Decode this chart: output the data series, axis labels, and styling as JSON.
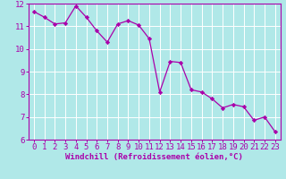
{
  "x": [
    0,
    1,
    2,
    3,
    4,
    5,
    6,
    7,
    8,
    9,
    10,
    11,
    12,
    13,
    14,
    15,
    16,
    17,
    18,
    19,
    20,
    21,
    22,
    23
  ],
  "y": [
    11.65,
    11.4,
    11.1,
    11.15,
    11.9,
    11.4,
    10.8,
    10.3,
    11.1,
    11.25,
    11.05,
    10.45,
    8.1,
    9.45,
    9.4,
    8.2,
    8.1,
    7.8,
    7.4,
    7.55,
    7.45,
    6.85,
    7.0,
    6.35
  ],
  "line_color": "#aa00aa",
  "marker": "D",
  "marker_size": 2.2,
  "bg_color": "#b0e8e8",
  "grid_color": "#ffffff",
  "xlabel": "Windchill (Refroidissement éolien,°C)",
  "xlabel_color": "#aa00aa",
  "tick_color": "#aa00aa",
  "axis_color": "#aa00aa",
  "ylim": [
    6,
    12
  ],
  "xlim": [
    0,
    23
  ],
  "yticks": [
    6,
    7,
    8,
    9,
    10,
    11,
    12
  ],
  "xticks": [
    0,
    1,
    2,
    3,
    4,
    5,
    6,
    7,
    8,
    9,
    10,
    11,
    12,
    13,
    14,
    15,
    16,
    17,
    18,
    19,
    20,
    21,
    22,
    23
  ],
  "tick_fontsize": 6.5,
  "xlabel_fontsize": 6.5
}
